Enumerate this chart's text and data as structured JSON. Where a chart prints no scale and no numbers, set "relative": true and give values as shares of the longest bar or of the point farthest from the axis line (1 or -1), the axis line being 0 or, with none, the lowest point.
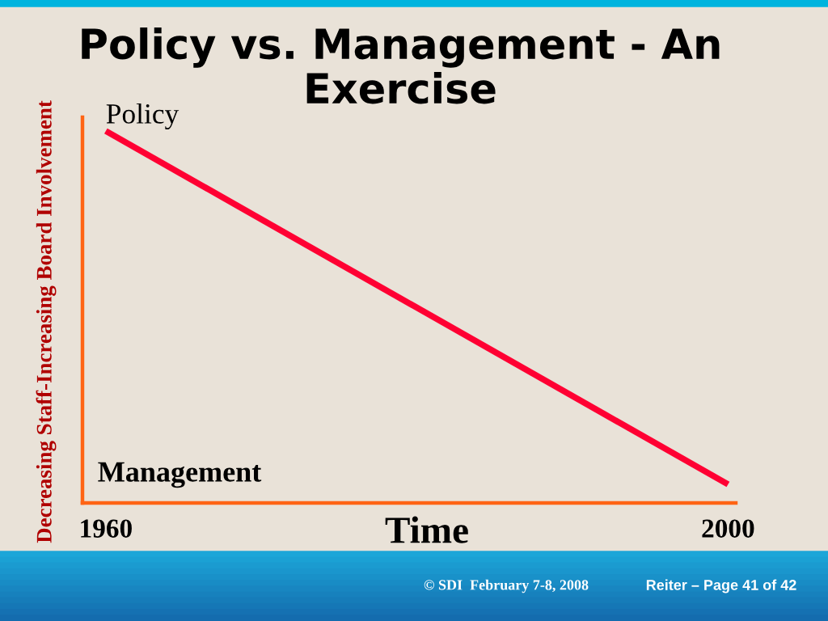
{
  "chart_data": {
    "type": "line",
    "title": "Policy vs. Management - An Exercise",
    "xlabel": "Time",
    "ylabel": "Decreasing Staff-Increasing Board Involvement",
    "x": [
      1960,
      2000
    ],
    "series": [
      {
        "color": "#ff0033",
        "values": [
          1,
          0.05
        ]
      }
    ],
    "relative": true,
    "line_style": "solid",
    "xlim": [
      1958.5,
      2000.5
    ],
    "xticks": [
      1960,
      2000
    ],
    "annotations": [
      "Policy",
      "Management",
      "© SDI  February 7-8, 2008",
      "Reiter – Page 41 of 42"
    ]
  }
}
